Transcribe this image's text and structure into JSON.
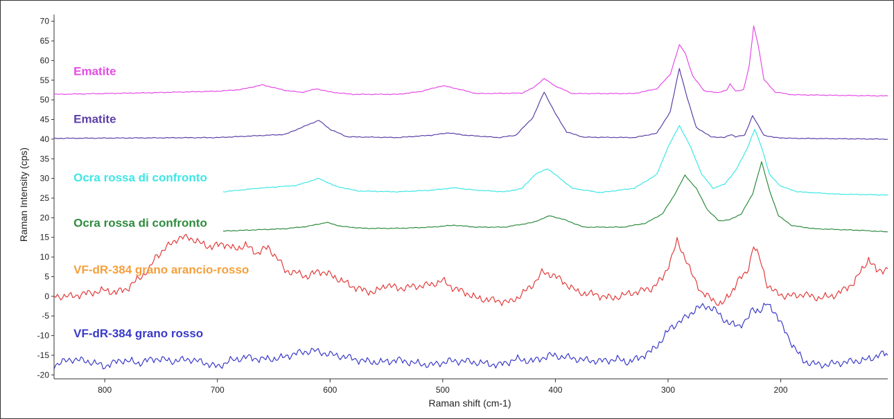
{
  "chart_data": {
    "type": "line",
    "title": "",
    "xlabel": "Raman shift (cm-1)",
    "ylabel": "Raman Intensity (cps)",
    "xlim": [
      845,
      105
    ],
    "ylim": [
      -21,
      71
    ],
    "x_reversed": true,
    "x_ticks": [
      800,
      700,
      600,
      500,
      400,
      300,
      200
    ],
    "y_ticks": [
      70,
      65,
      60,
      55,
      50,
      45,
      40,
      35,
      30,
      25,
      20,
      15,
      10,
      5,
      0,
      -5,
      -10,
      -15,
      -20
    ],
    "grid": false,
    "series": [
      {
        "name": "Ematite",
        "color": "#e64be6",
        "label_pos": [
          840,
          56.3
        ],
        "points": [
          [
            845,
            51.4
          ],
          [
            800,
            51.6
          ],
          [
            760,
            51.8
          ],
          [
            700,
            52.2
          ],
          [
            680,
            52.6
          ],
          [
            660,
            53.8
          ],
          [
            640,
            52.4
          ],
          [
            625,
            51.9
          ],
          [
            612,
            52.8
          ],
          [
            600,
            52.0
          ],
          [
            580,
            51.4
          ],
          [
            540,
            51.4
          ],
          [
            520,
            52.1
          ],
          [
            500,
            53.6
          ],
          [
            490,
            53.0
          ],
          [
            470,
            51.6
          ],
          [
            430,
            51.7
          ],
          [
            420,
            53.0
          ],
          [
            410,
            55.4
          ],
          [
            400,
            53.5
          ],
          [
            385,
            51.6
          ],
          [
            330,
            51.6
          ],
          [
            310,
            52.8
          ],
          [
            298,
            56.5
          ],
          [
            290,
            64.0
          ],
          [
            285,
            62.0
          ],
          [
            278,
            56.0
          ],
          [
            268,
            52.3
          ],
          [
            256,
            51.8
          ],
          [
            248,
            52.5
          ],
          [
            245,
            54.0
          ],
          [
            240,
            52.2
          ],
          [
            233,
            52.6
          ],
          [
            228,
            58.5
          ],
          [
            224,
            68.8
          ],
          [
            220,
            64.0
          ],
          [
            215,
            55.2
          ],
          [
            205,
            52.0
          ],
          [
            190,
            51.3
          ],
          [
            140,
            51.1
          ],
          [
            105,
            51.0
          ]
        ]
      },
      {
        "name": "Ematite",
        "color": "#5b3fa6",
        "label_pos": [
          840,
          44.1
        ],
        "points": [
          [
            845,
            40.2
          ],
          [
            700,
            40.4
          ],
          [
            640,
            41.2
          ],
          [
            620,
            43.6
          ],
          [
            610,
            44.8
          ],
          [
            600,
            42.5
          ],
          [
            585,
            40.6
          ],
          [
            540,
            40.4
          ],
          [
            510,
            41.0
          ],
          [
            495,
            41.6
          ],
          [
            480,
            41.0
          ],
          [
            450,
            40.4
          ],
          [
            435,
            41.0
          ],
          [
            420,
            45.5
          ],
          [
            410,
            52.0
          ],
          [
            400,
            46.5
          ],
          [
            390,
            41.8
          ],
          [
            375,
            40.5
          ],
          [
            330,
            40.4
          ],
          [
            310,
            41.5
          ],
          [
            298,
            47.0
          ],
          [
            290,
            58.0
          ],
          [
            283,
            50.5
          ],
          [
            275,
            43.0
          ],
          [
            262,
            40.6
          ],
          [
            250,
            40.4
          ],
          [
            244,
            41.2
          ],
          [
            240,
            40.6
          ],
          [
            232,
            41.0
          ],
          [
            225,
            46.0
          ],
          [
            220,
            43.5
          ],
          [
            215,
            41.0
          ],
          [
            205,
            40.4
          ],
          [
            190,
            40.2
          ],
          [
            105,
            40.0
          ]
        ]
      },
      {
        "name": "Ocra rossa di confronto",
        "color": "#3fe6e6",
        "label_pos": [
          840,
          29.2
        ],
        "points": [
          [
            695,
            26.6
          ],
          [
            660,
            27.6
          ],
          [
            630,
            28.2
          ],
          [
            610,
            30.0
          ],
          [
            595,
            28.0
          ],
          [
            575,
            26.8
          ],
          [
            540,
            26.6
          ],
          [
            510,
            27.0
          ],
          [
            490,
            27.6
          ],
          [
            470,
            27.0
          ],
          [
            445,
            26.6
          ],
          [
            430,
            27.4
          ],
          [
            418,
            31.0
          ],
          [
            407,
            32.5
          ],
          [
            398,
            30.5
          ],
          [
            385,
            27.5
          ],
          [
            360,
            26.4
          ],
          [
            330,
            27.5
          ],
          [
            310,
            31.0
          ],
          [
            300,
            38.0
          ],
          [
            290,
            43.5
          ],
          [
            280,
            38.0
          ],
          [
            270,
            31.0
          ],
          [
            260,
            27.5
          ],
          [
            250,
            28.5
          ],
          [
            240,
            32.0
          ],
          [
            230,
            37.5
          ],
          [
            223,
            42.5
          ],
          [
            217,
            38.0
          ],
          [
            210,
            31.0
          ],
          [
            200,
            28.0
          ],
          [
            185,
            26.6
          ],
          [
            150,
            26.0
          ],
          [
            105,
            25.8
          ]
        ]
      },
      {
        "name": "Ocra rossa di confronto",
        "color": "#2e8b3e",
        "label_pos": [
          840,
          17.7
        ],
        "points": [
          [
            695,
            16.6
          ],
          [
            640,
            17.2
          ],
          [
            620,
            17.8
          ],
          [
            603,
            18.8
          ],
          [
            590,
            17.8
          ],
          [
            570,
            17.3
          ],
          [
            540,
            17.3
          ],
          [
            510,
            17.6
          ],
          [
            490,
            18.1
          ],
          [
            470,
            17.6
          ],
          [
            445,
            17.6
          ],
          [
            420,
            18.8
          ],
          [
            405,
            20.5
          ],
          [
            392,
            19.5
          ],
          [
            375,
            17.6
          ],
          [
            340,
            17.6
          ],
          [
            320,
            18.6
          ],
          [
            305,
            21.0
          ],
          [
            295,
            25.5
          ],
          [
            285,
            30.8
          ],
          [
            275,
            27.5
          ],
          [
            265,
            22.0
          ],
          [
            255,
            19.2
          ],
          [
            245,
            19.5
          ],
          [
            235,
            21.0
          ],
          [
            225,
            26.0
          ],
          [
            217,
            34.2
          ],
          [
            210,
            27.0
          ],
          [
            202,
            20.5
          ],
          [
            190,
            18.0
          ],
          [
            170,
            17.2
          ],
          [
            130,
            16.8
          ],
          [
            105,
            16.4
          ]
        ]
      },
      {
        "name": "VF-dR-384 grano arancio-rosso",
        "color": "#e23b3b",
        "label_color": "#f4a03c",
        "label_pos": [
          840,
          5.8
        ],
        "points": [
          [
            845,
            0
          ],
          [
            830,
            0
          ],
          [
            815,
            0.8
          ],
          [
            800,
            1.5
          ],
          [
            790,
            1.0
          ],
          [
            780,
            2.0
          ],
          [
            770,
            4.5
          ],
          [
            760,
            7.0
          ],
          [
            755,
            10.0
          ],
          [
            745,
            12.5
          ],
          [
            735,
            14.8
          ],
          [
            725,
            15.0
          ],
          [
            715,
            13.5
          ],
          [
            705,
            12.5
          ],
          [
            695,
            13.5
          ],
          [
            685,
            12.0
          ],
          [
            675,
            13.0
          ],
          [
            665,
            11.0
          ],
          [
            655,
            12.5
          ],
          [
            645,
            9.0
          ],
          [
            640,
            6.5
          ],
          [
            630,
            6.0
          ],
          [
            620,
            5.0
          ],
          [
            610,
            6.5
          ],
          [
            600,
            5.5
          ],
          [
            590,
            4.0
          ],
          [
            580,
            2.5
          ],
          [
            570,
            1.5
          ],
          [
            560,
            1.0
          ],
          [
            550,
            3.0
          ],
          [
            540,
            2.0
          ],
          [
            525,
            2.5
          ],
          [
            510,
            3.0
          ],
          [
            500,
            4.0
          ],
          [
            490,
            2.0
          ],
          [
            480,
            1.0
          ],
          [
            470,
            -0.5
          ],
          [
            455,
            -1.0
          ],
          [
            440,
            -1.5
          ],
          [
            430,
            0.5
          ],
          [
            420,
            3.0
          ],
          [
            412,
            6.0
          ],
          [
            402,
            5.5
          ],
          [
            392,
            3.5
          ],
          [
            380,
            1.0
          ],
          [
            365,
            0.5
          ],
          [
            350,
            -0.5
          ],
          [
            330,
            1.0
          ],
          [
            315,
            2.0
          ],
          [
            305,
            4.5
          ],
          [
            298,
            9.0
          ],
          [
            292,
            14.0
          ],
          [
            285,
            10.0
          ],
          [
            278,
            5.0
          ],
          [
            270,
            1.0
          ],
          [
            260,
            -1.0
          ],
          [
            252,
            -2.0
          ],
          [
            245,
            0.5
          ],
          [
            238,
            4.0
          ],
          [
            230,
            6.0
          ],
          [
            224,
            13.0
          ],
          [
            218,
            9.0
          ],
          [
            212,
            3.0
          ],
          [
            205,
            1.0
          ],
          [
            195,
            0.0
          ],
          [
            180,
            0.5
          ],
          [
            165,
            -0.5
          ],
          [
            150,
            0.5
          ],
          [
            135,
            3.5
          ],
          [
            122,
            9.5
          ],
          [
            115,
            6.5
          ],
          [
            105,
            7.0
          ]
        ]
      },
      {
        "name": "VF-dR-384 grano rosso",
        "color": "#3a3ac8",
        "label_pos": [
          840,
          -10.4
        ],
        "points": [
          [
            845,
            -17.5
          ],
          [
            830,
            -16.0
          ],
          [
            815,
            -16.5
          ],
          [
            800,
            -17.8
          ],
          [
            785,
            -16.2
          ],
          [
            770,
            -17.0
          ],
          [
            755,
            -15.8
          ],
          [
            740,
            -16.5
          ],
          [
            725,
            -16.0
          ],
          [
            710,
            -17.0
          ],
          [
            700,
            -18.0
          ],
          [
            690,
            -16.5
          ],
          [
            675,
            -15.5
          ],
          [
            660,
            -16.0
          ],
          [
            645,
            -15.8
          ],
          [
            630,
            -14.5
          ],
          [
            615,
            -13.8
          ],
          [
            600,
            -14.8
          ],
          [
            585,
            -15.5
          ],
          [
            570,
            -16.5
          ],
          [
            555,
            -16.8
          ],
          [
            540,
            -16.2
          ],
          [
            525,
            -17.0
          ],
          [
            510,
            -17.5
          ],
          [
            495,
            -16.5
          ],
          [
            480,
            -16.5
          ],
          [
            465,
            -17.0
          ],
          [
            450,
            -17.5
          ],
          [
            435,
            -16.0
          ],
          [
            420,
            -16.5
          ],
          [
            405,
            -15.0
          ],
          [
            390,
            -15.5
          ],
          [
            375,
            -16.2
          ],
          [
            360,
            -16.5
          ],
          [
            345,
            -16.0
          ],
          [
            335,
            -16.8
          ],
          [
            325,
            -15.5
          ],
          [
            315,
            -14.0
          ],
          [
            305,
            -11.0
          ],
          [
            298,
            -8.0
          ],
          [
            290,
            -6.5
          ],
          [
            282,
            -5.0
          ],
          [
            275,
            -3.0
          ],
          [
            265,
            -2.5
          ],
          [
            258,
            -3.5
          ],
          [
            252,
            -5.5
          ],
          [
            245,
            -7.0
          ],
          [
            238,
            -7.5
          ],
          [
            230,
            -6.0
          ],
          [
            225,
            -3.5
          ],
          [
            218,
            -3.5
          ],
          [
            212,
            -2.0
          ],
          [
            205,
            -4.0
          ],
          [
            198,
            -8.0
          ],
          [
            190,
            -12.0
          ],
          [
            180,
            -16.5
          ],
          [
            165,
            -17.5
          ],
          [
            150,
            -17.0
          ],
          [
            135,
            -16.5
          ],
          [
            120,
            -16.0
          ],
          [
            112,
            -14.5
          ],
          [
            105,
            -15.0
          ]
        ]
      }
    ]
  }
}
